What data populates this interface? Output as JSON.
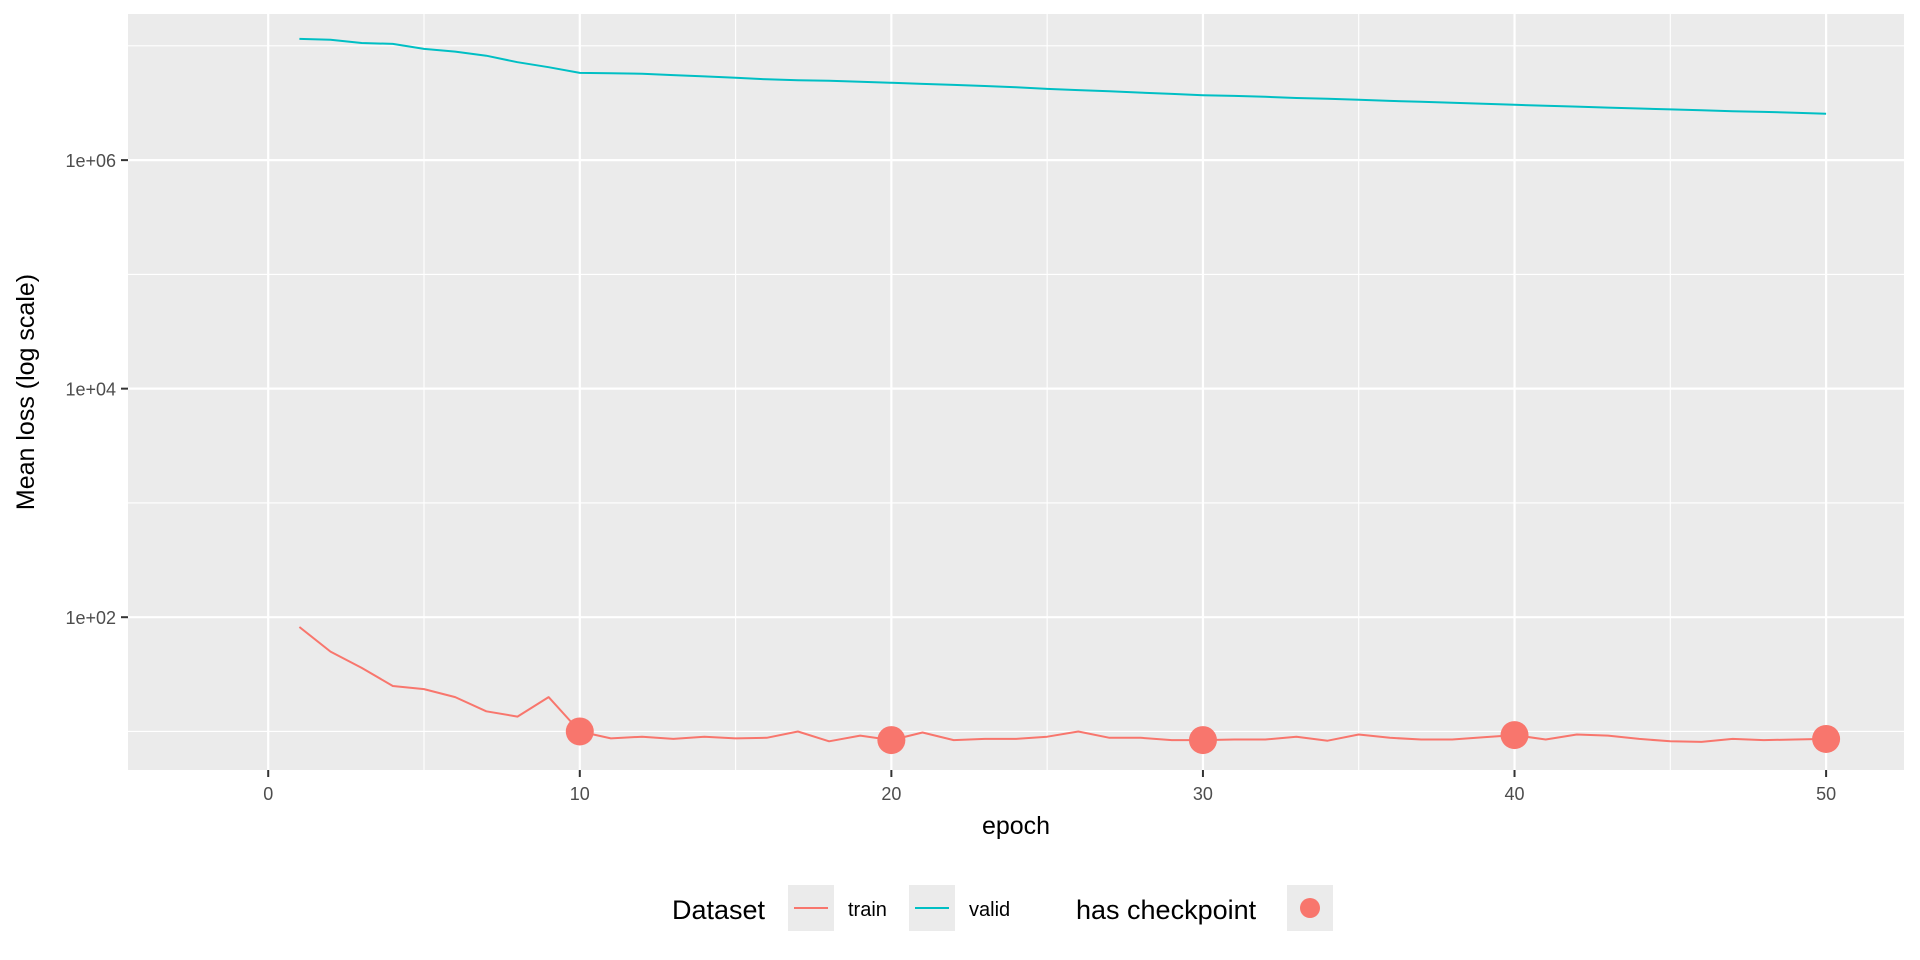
{
  "chart_data": {
    "type": "line",
    "xlabel": "epoch",
    "ylabel": "Mean loss (log scale)",
    "y_scale": "log",
    "xlim": [
      -4.5,
      52.5
    ],
    "ylim": [
      4.6,
      19000000
    ],
    "x_ticks": [
      0,
      10,
      20,
      30,
      40,
      50
    ],
    "x_tick_labels": [
      "0",
      "10",
      "20",
      "30",
      "40",
      "50"
    ],
    "y_ticks": [
      100,
      10000,
      1000000
    ],
    "y_tick_labels": [
      "1e+02",
      "1e+04",
      "1e+06"
    ],
    "grid": true,
    "legend_position": "bottom",
    "legend": {
      "color_title": "Dataset",
      "shape_title": "has checkpoint",
      "entries": [
        "train",
        "valid"
      ]
    },
    "series": [
      {
        "name": "train",
        "color": "#f8766d",
        "x": [
          1,
          2,
          3,
          4,
          5,
          6,
          7,
          8,
          9,
          10,
          11,
          12,
          13,
          14,
          15,
          16,
          17,
          18,
          19,
          20,
          21,
          22,
          23,
          24,
          25,
          26,
          27,
          28,
          29,
          30,
          31,
          32,
          33,
          34,
          35,
          36,
          37,
          38,
          39,
          40,
          41,
          42,
          43,
          44,
          45,
          46,
          47,
          48,
          49,
          50
        ],
        "y": [
          82,
          50,
          36,
          25,
          23.5,
          20,
          15,
          13.5,
          20,
          10,
          8.7,
          9,
          8.6,
          9,
          8.7,
          8.8,
          10,
          8.2,
          9.2,
          8.4,
          9.8,
          8.4,
          8.6,
          8.6,
          9,
          10,
          8.8,
          8.8,
          8.4,
          8.4,
          8.5,
          8.5,
          9,
          8.3,
          9.4,
          8.8,
          8.5,
          8.5,
          8.9,
          9.3,
          8.5,
          9.4,
          9.2,
          8.6,
          8.2,
          8.1,
          8.6,
          8.4,
          8.5,
          8.6
        ]
      },
      {
        "name": "valid",
        "color": "#00bfc4",
        "x": [
          1,
          2,
          3,
          4,
          5,
          6,
          7,
          8,
          9,
          10,
          11,
          12,
          13,
          14,
          15,
          16,
          17,
          18,
          19,
          20,
          21,
          22,
          23,
          24,
          25,
          26,
          27,
          28,
          29,
          30,
          31,
          32,
          33,
          34,
          35,
          36,
          37,
          38,
          39,
          40,
          41,
          42,
          43,
          44,
          45,
          46,
          47,
          48,
          49,
          50
        ],
        "y": [
          11500000,
          11300000,
          10600000,
          10400000,
          9400000,
          8900000,
          8200000,
          7200000,
          6500000,
          5800000,
          5750000,
          5700000,
          5550000,
          5400000,
          5250000,
          5100000,
          5000000,
          4950000,
          4850000,
          4750000,
          4650000,
          4550000,
          4450000,
          4350000,
          4200000,
          4100000,
          4000000,
          3900000,
          3800000,
          3700000,
          3650000,
          3580000,
          3500000,
          3450000,
          3380000,
          3300000,
          3240000,
          3180000,
          3120000,
          3050000,
          2990000,
          2940000,
          2880000,
          2830000,
          2780000,
          2730000,
          2680000,
          2640000,
          2600000,
          2550000
        ]
      }
    ],
    "checkpoints": {
      "label": "has checkpoint",
      "color": "#f8766d",
      "x": [
        10,
        20,
        30,
        40,
        50
      ],
      "y": [
        10,
        8.4,
        8.4,
        9.3,
        8.6
      ]
    }
  }
}
